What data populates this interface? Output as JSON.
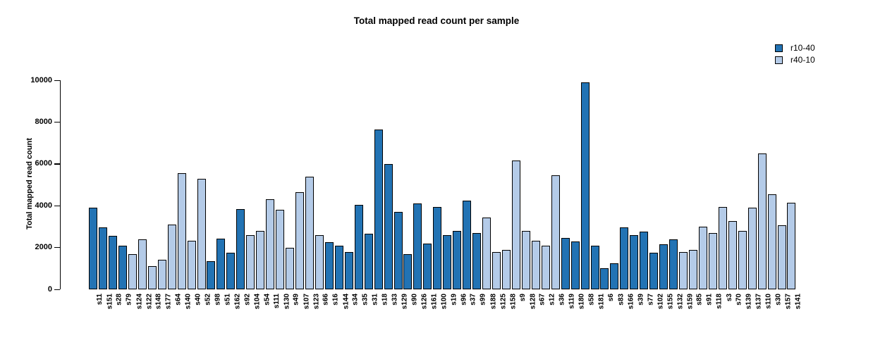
{
  "chart_data": {
    "type": "bar",
    "title": "Total mapped read count per sample",
    "xlabel": "",
    "ylabel": "Total mapped read count",
    "ylim": [
      0,
      10000
    ],
    "y_ticks": [
      0,
      2000,
      4000,
      6000,
      8000,
      10000
    ],
    "grid": false,
    "legend_position": "top-right",
    "legend": [
      {
        "name": "r10-40",
        "color": "#2273b4"
      },
      {
        "name": "r40-10",
        "color": "#b4cbe8"
      }
    ],
    "bars": [
      {
        "label": "s11",
        "value": 3900,
        "group": "r10-40"
      },
      {
        "label": "s151",
        "value": 2950,
        "group": "r10-40"
      },
      {
        "label": "s28",
        "value": 2550,
        "group": "r10-40"
      },
      {
        "label": "s79",
        "value": 2100,
        "group": "r10-40"
      },
      {
        "label": "s124",
        "value": 1700,
        "group": "r40-10"
      },
      {
        "label": "s122",
        "value": 2400,
        "group": "r40-10"
      },
      {
        "label": "s148",
        "value": 1100,
        "group": "r40-10"
      },
      {
        "label": "s177",
        "value": 1400,
        "group": "r40-10"
      },
      {
        "label": "s64",
        "value": 3100,
        "group": "r40-10"
      },
      {
        "label": "s140",
        "value": 5550,
        "group": "r40-10"
      },
      {
        "label": "s40",
        "value": 2330,
        "group": "r40-10"
      },
      {
        "label": "s52",
        "value": 5300,
        "group": "r40-10"
      },
      {
        "label": "s98",
        "value": 1350,
        "group": "r10-40"
      },
      {
        "label": "s51",
        "value": 2420,
        "group": "r10-40"
      },
      {
        "label": "s162",
        "value": 1750,
        "group": "r10-40"
      },
      {
        "label": "s92",
        "value": 3850,
        "group": "r10-40"
      },
      {
        "label": "s104",
        "value": 2600,
        "group": "r40-10"
      },
      {
        "label": "s54",
        "value": 2780,
        "group": "r40-10"
      },
      {
        "label": "s111",
        "value": 4300,
        "group": "r40-10"
      },
      {
        "label": "s130",
        "value": 3800,
        "group": "r40-10"
      },
      {
        "label": "s49",
        "value": 2000,
        "group": "r40-10"
      },
      {
        "label": "s107",
        "value": 4650,
        "group": "r40-10"
      },
      {
        "label": "s123",
        "value": 5400,
        "group": "r40-10"
      },
      {
        "label": "s66",
        "value": 2600,
        "group": "r40-10"
      },
      {
        "label": "s16",
        "value": 2250,
        "group": "r10-40"
      },
      {
        "label": "s144",
        "value": 2100,
        "group": "r10-40"
      },
      {
        "label": "s34",
        "value": 1800,
        "group": "r10-40"
      },
      {
        "label": "s35",
        "value": 4050,
        "group": "r10-40"
      },
      {
        "label": "s31",
        "value": 2650,
        "group": "r10-40"
      },
      {
        "label": "s18",
        "value": 7650,
        "group": "r10-40"
      },
      {
        "label": "s33",
        "value": 6000,
        "group": "r10-40"
      },
      {
        "label": "s129",
        "value": 3700,
        "group": "r10-40"
      },
      {
        "label": "s90",
        "value": 1700,
        "group": "r10-40"
      },
      {
        "label": "s126",
        "value": 4100,
        "group": "r10-40"
      },
      {
        "label": "s161",
        "value": 2200,
        "group": "r10-40"
      },
      {
        "label": "s100",
        "value": 3950,
        "group": "r10-40"
      },
      {
        "label": "s19",
        "value": 2600,
        "group": "r10-40"
      },
      {
        "label": "s96",
        "value": 2800,
        "group": "r10-40"
      },
      {
        "label": "s37",
        "value": 4250,
        "group": "r10-40"
      },
      {
        "label": "s99",
        "value": 2700,
        "group": "r10-40"
      },
      {
        "label": "s188",
        "value": 3450,
        "group": "r40-10"
      },
      {
        "label": "s125",
        "value": 1800,
        "group": "r40-10"
      },
      {
        "label": "s158",
        "value": 1900,
        "group": "r40-10"
      },
      {
        "label": "s9",
        "value": 6150,
        "group": "r40-10"
      },
      {
        "label": "s128",
        "value": 2800,
        "group": "r40-10"
      },
      {
        "label": "s67",
        "value": 2330,
        "group": "r40-10"
      },
      {
        "label": "s12",
        "value": 2100,
        "group": "r40-10"
      },
      {
        "label": "s36",
        "value": 5450,
        "group": "r40-10"
      },
      {
        "label": "s119",
        "value": 2450,
        "group": "r10-40"
      },
      {
        "label": "s180",
        "value": 2300,
        "group": "r10-40"
      },
      {
        "label": "s58",
        "value": 9900,
        "group": "r10-40"
      },
      {
        "label": "s181",
        "value": 2100,
        "group": "r10-40"
      },
      {
        "label": "s6",
        "value": 1000,
        "group": "r10-40"
      },
      {
        "label": "s83",
        "value": 1250,
        "group": "r10-40"
      },
      {
        "label": "s166",
        "value": 2950,
        "group": "r10-40"
      },
      {
        "label": "s39",
        "value": 2600,
        "group": "r10-40"
      },
      {
        "label": "s77",
        "value": 2750,
        "group": "r10-40"
      },
      {
        "label": "s102",
        "value": 1750,
        "group": "r10-40"
      },
      {
        "label": "s155",
        "value": 2150,
        "group": "r10-40"
      },
      {
        "label": "s132",
        "value": 2400,
        "group": "r10-40"
      },
      {
        "label": "s159",
        "value": 1800,
        "group": "r40-10"
      },
      {
        "label": "s85",
        "value": 1900,
        "group": "r40-10"
      },
      {
        "label": "s91",
        "value": 3000,
        "group": "r40-10"
      },
      {
        "label": "s118",
        "value": 2700,
        "group": "r40-10"
      },
      {
        "label": "s3",
        "value": 3950,
        "group": "r40-10"
      },
      {
        "label": "s70",
        "value": 3250,
        "group": "r40-10"
      },
      {
        "label": "s139",
        "value": 2800,
        "group": "r40-10"
      },
      {
        "label": "s137",
        "value": 3900,
        "group": "r40-10"
      },
      {
        "label": "s110",
        "value": 6500,
        "group": "r40-10"
      },
      {
        "label": "s30",
        "value": 4550,
        "group": "r40-10"
      },
      {
        "label": "s157",
        "value": 3050,
        "group": "r40-10"
      },
      {
        "label": "s141",
        "value": 4150,
        "group": "r40-10"
      }
    ]
  },
  "colors": {
    "background": "#ffffff",
    "axis": "#000000",
    "bar_border": "#000000",
    "dark_series": "#2273b4",
    "light_series": "#b4cbe8"
  }
}
